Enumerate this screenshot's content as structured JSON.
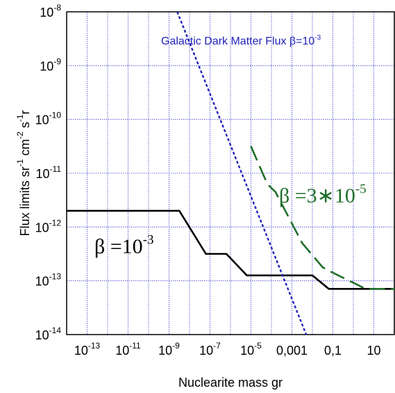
{
  "chart_data": {
    "type": "line",
    "xlabel": "Nuclearite mass gr",
    "ylabel_parts": [
      "Flux limits sr",
      "-1",
      " cm",
      "-2",
      " s",
      "-1",
      "r"
    ],
    "x_scale": "log",
    "y_scale": "log",
    "xlim_exp": [
      -14,
      2
    ],
    "ylim_exp": [
      -14,
      -8
    ],
    "grid": true,
    "x_ticks": [
      {
        "exp": -13,
        "mantissa": "10",
        "sup": "-13"
      },
      {
        "exp": -11,
        "mantissa": "10",
        "sup": "-11"
      },
      {
        "exp": -9,
        "mantissa": "10",
        "sup": "-9"
      },
      {
        "exp": -7,
        "mantissa": "10",
        "sup": "-7"
      },
      {
        "exp": -5,
        "mantissa": "10",
        "sup": "-5"
      },
      {
        "exp": -3,
        "mantissa": "0,001",
        "sup": ""
      },
      {
        "exp": -1,
        "mantissa": "0,1",
        "sup": ""
      },
      {
        "exp": 1,
        "mantissa": "10",
        "sup": ""
      }
    ],
    "y_ticks": [
      {
        "exp": -8,
        "mantissa": "10",
        "sup": "-8"
      },
      {
        "exp": -9,
        "mantissa": "10",
        "sup": "-9"
      },
      {
        "exp": -10,
        "mantissa": "10",
        "sup": "-10"
      },
      {
        "exp": -11,
        "mantissa": "10",
        "sup": "-11"
      },
      {
        "exp": -12,
        "mantissa": "10",
        "sup": "-12"
      },
      {
        "exp": -13,
        "mantissa": "10",
        "sup": "-13"
      },
      {
        "exp": -14,
        "mantissa": "10",
        "sup": "-14"
      }
    ],
    "series": [
      {
        "key": "beta-1e-3",
        "color": "#000000",
        "style": "solid",
        "points_log10": [
          [
            -14,
            -11.7
          ],
          [
            -8.5,
            -11.7
          ],
          [
            -7.2,
            -12.5
          ],
          [
            -6.2,
            -12.5
          ],
          [
            -5.2,
            -12.9
          ],
          [
            -2,
            -12.9
          ],
          [
            -1.2,
            -13.15
          ],
          [
            2,
            -13.15
          ]
        ]
      },
      {
        "key": "beta-3e-5",
        "color": "#1f6f2a",
        "style": "dashed",
        "points_log10": [
          [
            -5,
            -10.5
          ],
          [
            -4.2,
            -11.2
          ],
          [
            -3.8,
            -11.35
          ],
          [
            -2.5,
            -12.3
          ],
          [
            -1.5,
            -12.75
          ],
          [
            -1,
            -12.85
          ],
          [
            0.6,
            -13.15
          ],
          [
            2,
            -13.15
          ]
        ]
      },
      {
        "key": "galactic-dm-flux",
        "color": "#2222bb",
        "style": "dotted",
        "points_log10": [
          [
            -8.6,
            -8
          ],
          [
            -2.3,
            -14
          ]
        ]
      }
    ],
    "annotations": [
      {
        "key": "beta-1e-3",
        "prefix": "β =10",
        "sup": "-3",
        "color": "#000000"
      },
      {
        "key": "beta-3e-5",
        "prefix": "β =3∗10",
        "sup": "-5",
        "color": "#1f6f2a"
      },
      {
        "key": "galactic-dm-flux",
        "prefix": "Galactic Dark Matter Flux β=10",
        "sup": "-3",
        "color": "#2222bb"
      }
    ]
  }
}
